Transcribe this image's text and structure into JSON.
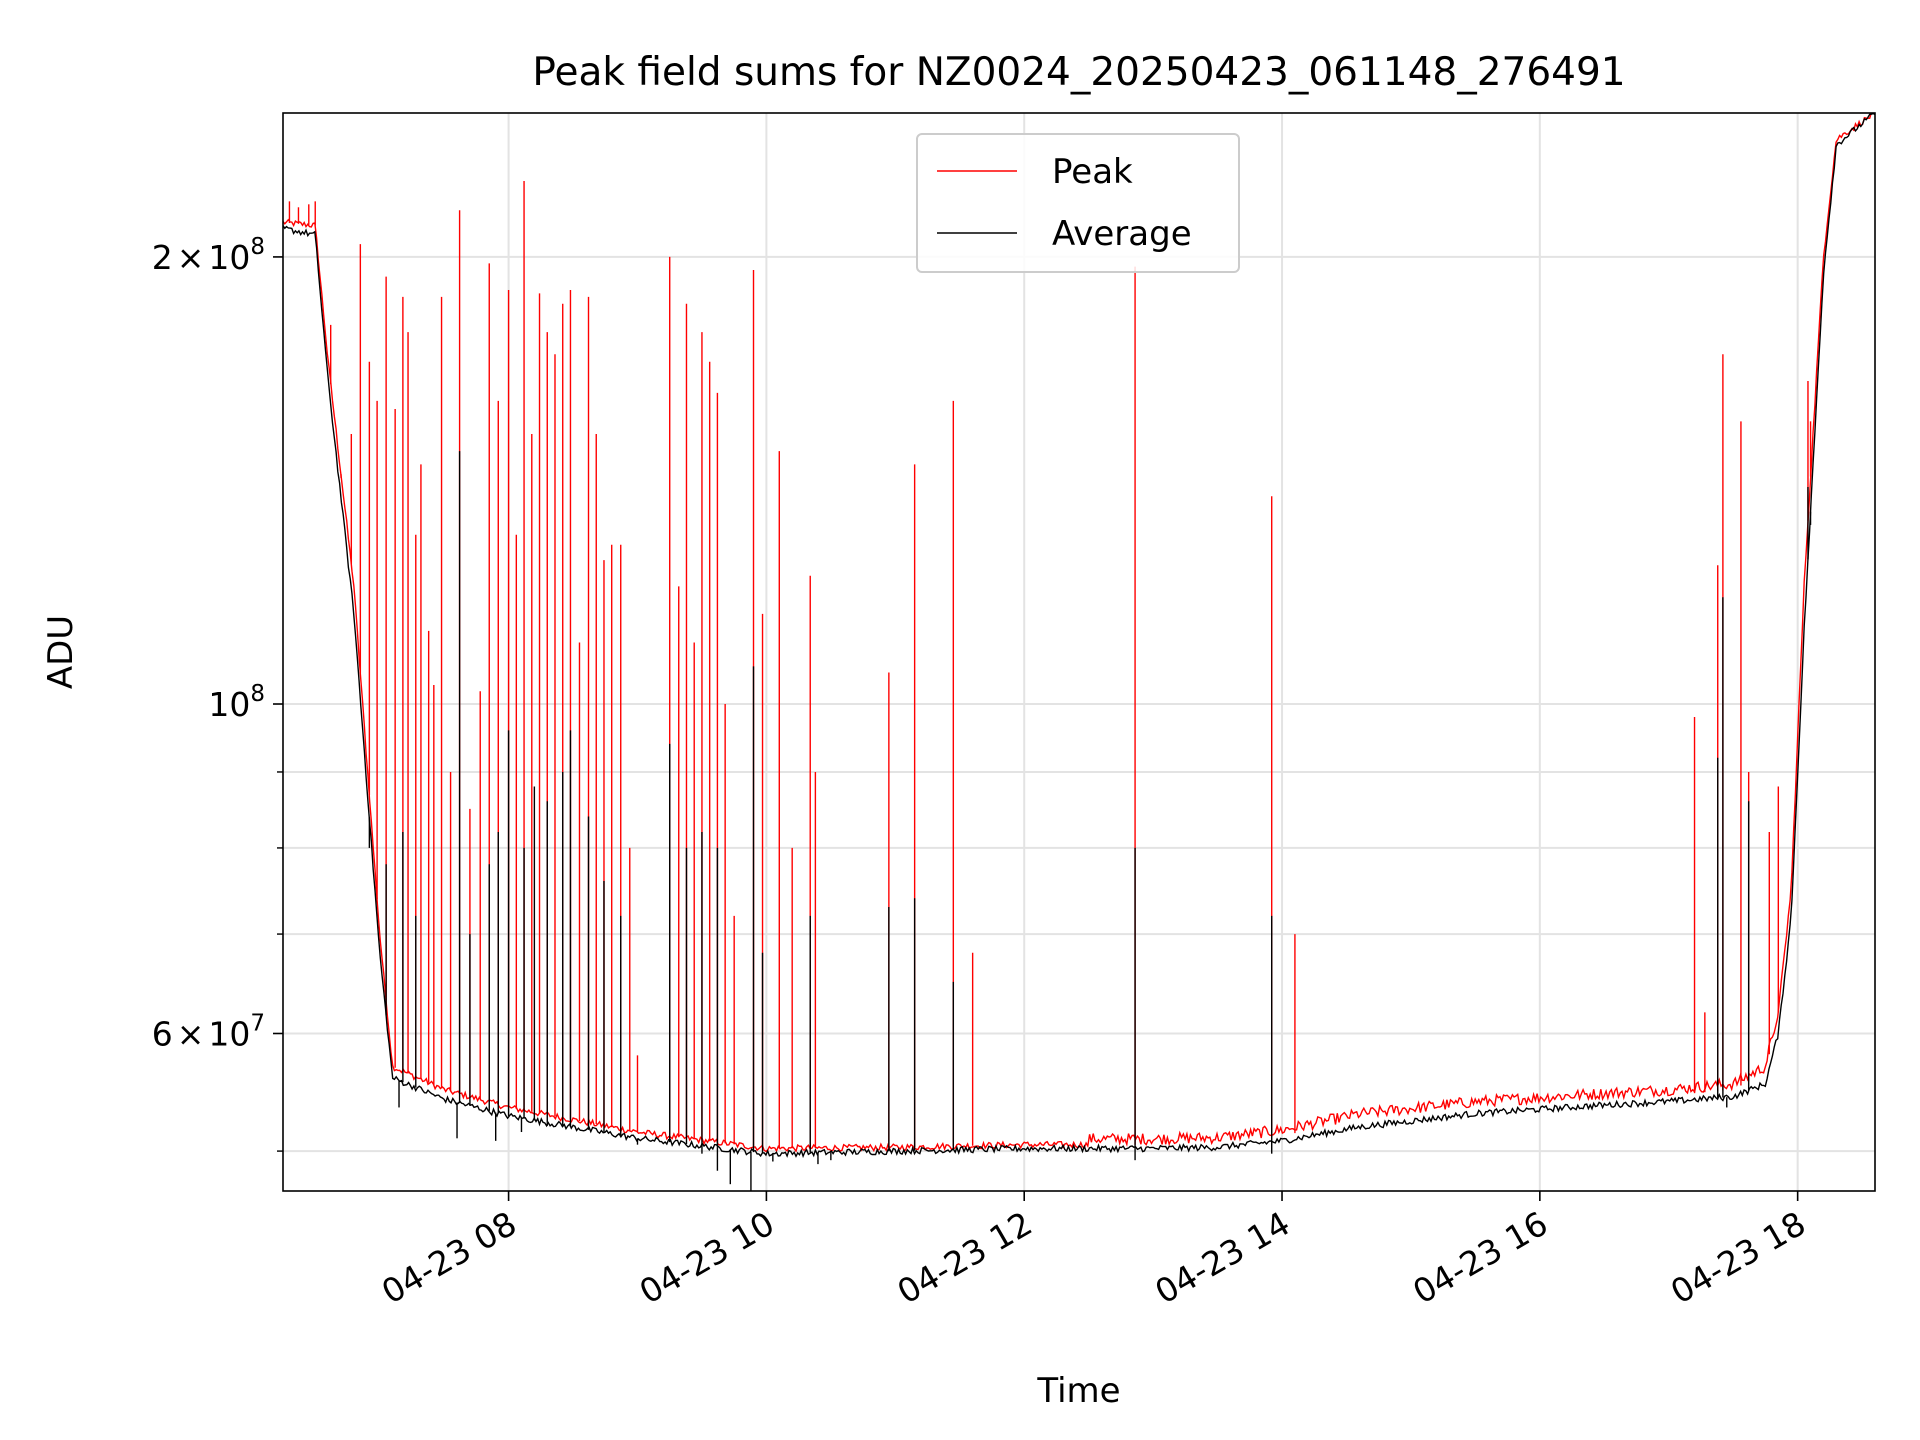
{
  "chart_data": {
    "type": "line",
    "title": "Peak field sums for NZ0024_20250423_061148_276491",
    "xlabel": "Time",
    "ylabel": "ADU",
    "yscale": "log",
    "ylim": [
      47000000,
      250000000
    ],
    "xlim_hours": [
      6.25,
      18.6
    ],
    "grid": true,
    "legend_position": "top-center",
    "x_ticks": [
      {
        "hour": 8,
        "label": "04-23 08"
      },
      {
        "hour": 10,
        "label": "04-23 10"
      },
      {
        "hour": 12,
        "label": "04-23 12"
      },
      {
        "hour": 14,
        "label": "04-23 14"
      },
      {
        "hour": 16,
        "label": "04-23 16"
      },
      {
        "hour": 18,
        "label": "04-23 18"
      }
    ],
    "y_major_ticks": [
      {
        "value": 60000000,
        "mantissa": "6",
        "times": "×",
        "base": "10",
        "exp": "7"
      },
      {
        "value": 100000000,
        "mantissa": "",
        "times": "",
        "base": "10",
        "exp": "8"
      },
      {
        "value": 200000000,
        "mantissa": "2",
        "times": "×",
        "base": "10",
        "exp": "8"
      }
    ],
    "y_minor_grid": [
      50000000,
      70000000,
      80000000,
      90000000
    ],
    "series": [
      {
        "name": "Peak",
        "color": "#ff0000",
        "baseline": [
          [
            6.25,
            211000000
          ],
          [
            6.5,
            210000000
          ],
          [
            6.6,
            170000000
          ],
          [
            6.8,
            120000000
          ],
          [
            7.0,
            70000000
          ],
          [
            7.1,
            57000000
          ],
          [
            7.5,
            55000000
          ],
          [
            8.0,
            53500000
          ],
          [
            9.0,
            51500000
          ],
          [
            10.0,
            50200000
          ],
          [
            11.0,
            50300000
          ],
          [
            12.0,
            50500000
          ],
          [
            13.0,
            50500000
          ],
          [
            13.5,
            50600000
          ],
          [
            14.0,
            51200000
          ],
          [
            14.6,
            52500000
          ],
          [
            15.5,
            53500000
          ],
          [
            16.5,
            54200000
          ],
          [
            17.0,
            54500000
          ],
          [
            17.5,
            55000000
          ],
          [
            17.75,
            56500000
          ],
          [
            17.85,
            62000000
          ],
          [
            17.95,
            75000000
          ],
          [
            18.05,
            120000000
          ],
          [
            18.2,
            200000000
          ],
          [
            18.3,
            240000000
          ],
          [
            18.6,
            250000000
          ]
        ],
        "spikes": [
          [
            6.3,
            218000000
          ],
          [
            6.37,
            216000000
          ],
          [
            6.45,
            217000000
          ],
          [
            6.5,
            218000000
          ],
          [
            6.62,
            180000000
          ],
          [
            6.7,
            142000000
          ],
          [
            6.78,
            152000000
          ],
          [
            6.85,
            204000000
          ],
          [
            6.92,
            170000000
          ],
          [
            6.98,
            160000000
          ],
          [
            7.05,
            194000000
          ],
          [
            7.12,
            158000000
          ],
          [
            7.18,
            188000000
          ],
          [
            7.22,
            178000000
          ],
          [
            7.28,
            130000000
          ],
          [
            7.32,
            145000000
          ],
          [
            7.38,
            112000000
          ],
          [
            7.42,
            103000000
          ],
          [
            7.48,
            188000000
          ],
          [
            7.55,
            90000000
          ],
          [
            7.62,
            215000000
          ],
          [
            7.7,
            85000000
          ],
          [
            7.78,
            102000000
          ],
          [
            7.85,
            198000000
          ],
          [
            7.92,
            160000000
          ],
          [
            8.0,
            190000000
          ],
          [
            8.06,
            130000000
          ],
          [
            8.12,
            225000000
          ],
          [
            8.18,
            152000000
          ],
          [
            8.24,
            189000000
          ],
          [
            8.3,
            178000000
          ],
          [
            8.36,
            172000000
          ],
          [
            8.42,
            186000000
          ],
          [
            8.48,
            190000000
          ],
          [
            8.55,
            110000000
          ],
          [
            8.62,
            188000000
          ],
          [
            8.68,
            152000000
          ],
          [
            8.74,
            125000000
          ],
          [
            8.8,
            128000000
          ],
          [
            8.87,
            128000000
          ],
          [
            8.94,
            80000000
          ],
          [
            9.0,
            58000000
          ],
          [
            9.25,
            200000000
          ],
          [
            9.32,
            120000000
          ],
          [
            9.38,
            186000000
          ],
          [
            9.44,
            110000000
          ],
          [
            9.5,
            178000000
          ],
          [
            9.56,
            170000000
          ],
          [
            9.62,
            162000000
          ],
          [
            9.68,
            100000000
          ],
          [
            9.75,
            72000000
          ],
          [
            9.9,
            196000000
          ],
          [
            9.97,
            115000000
          ],
          [
            10.1,
            148000000
          ],
          [
            10.2,
            80000000
          ],
          [
            10.34,
            122000000
          ],
          [
            10.38,
            90000000
          ],
          [
            10.95,
            105000000
          ],
          [
            11.15,
            145000000
          ],
          [
            11.45,
            160000000
          ],
          [
            11.6,
            68000000
          ],
          [
            12.86,
            197000000
          ],
          [
            13.92,
            138000000
          ],
          [
            14.1,
            70000000
          ],
          [
            17.2,
            98000000
          ],
          [
            17.28,
            62000000
          ],
          [
            17.38,
            124000000
          ],
          [
            17.42,
            172000000
          ],
          [
            17.56,
            155000000
          ],
          [
            17.62,
            90000000
          ],
          [
            17.78,
            82000000
          ],
          [
            17.85,
            88000000
          ],
          [
            18.08,
            165000000
          ],
          [
            18.1,
            155000000
          ]
        ]
      },
      {
        "name": "Average",
        "color": "#000000",
        "baseline": [
          [
            6.25,
            209000000
          ],
          [
            6.5,
            207000000
          ],
          [
            6.6,
            165000000
          ],
          [
            6.8,
            115000000
          ],
          [
            7.0,
            68000000
          ],
          [
            7.1,
            56000000
          ],
          [
            7.5,
            54200000
          ],
          [
            8.0,
            52800000
          ],
          [
            9.0,
            51000000
          ],
          [
            10.0,
            49800000
          ],
          [
            11.0,
            50000000
          ],
          [
            12.0,
            50200000
          ],
          [
            13.0,
            50200000
          ],
          [
            13.5,
            50300000
          ],
          [
            14.0,
            50800000
          ],
          [
            14.6,
            51900000
          ],
          [
            15.5,
            53000000
          ],
          [
            16.5,
            53700000
          ],
          [
            17.0,
            54000000
          ],
          [
            17.5,
            54400000
          ],
          [
            17.75,
            55500000
          ],
          [
            17.85,
            60000000
          ],
          [
            17.95,
            72000000
          ],
          [
            18.05,
            112000000
          ],
          [
            18.2,
            195000000
          ],
          [
            18.3,
            238000000
          ],
          [
            18.6,
            250000000
          ]
        ],
        "spikes": [
          [
            6.92,
            80000000
          ],
          [
            7.05,
            78000000
          ],
          [
            7.18,
            82000000
          ],
          [
            7.28,
            72000000
          ],
          [
            7.62,
            148000000
          ],
          [
            7.7,
            70000000
          ],
          [
            7.85,
            78000000
          ],
          [
            7.92,
            82000000
          ],
          [
            8.0,
            96000000
          ],
          [
            8.12,
            80000000
          ],
          [
            8.2,
            88000000
          ],
          [
            8.3,
            86000000
          ],
          [
            8.42,
            90000000
          ],
          [
            8.48,
            96000000
          ],
          [
            8.62,
            84000000
          ],
          [
            8.74,
            76000000
          ],
          [
            8.87,
            72000000
          ],
          [
            9.25,
            94000000
          ],
          [
            9.38,
            80000000
          ],
          [
            9.5,
            82000000
          ],
          [
            9.62,
            80000000
          ],
          [
            9.9,
            106000000
          ],
          [
            9.97,
            68000000
          ],
          [
            10.34,
            72000000
          ],
          [
            10.95,
            73000000
          ],
          [
            11.15,
            74000000
          ],
          [
            11.45,
            65000000
          ],
          [
            12.86,
            80000000
          ],
          [
            13.92,
            72000000
          ],
          [
            17.38,
            92000000
          ],
          [
            17.42,
            118000000
          ],
          [
            17.62,
            86000000
          ],
          [
            18.08,
            140000000
          ],
          [
            18.1,
            132000000
          ]
        ],
        "dips": [
          [
            7.15,
            53500000
          ],
          [
            7.6,
            51000000
          ],
          [
            7.9,
            50800000
          ],
          [
            8.1,
            51500000
          ],
          [
            8.3,
            52000000
          ],
          [
            9.0,
            50500000
          ],
          [
            9.5,
            49800000
          ],
          [
            9.62,
            48500000
          ],
          [
            9.72,
            47500000
          ],
          [
            9.88,
            47000000
          ],
          [
            10.05,
            49200000
          ],
          [
            10.4,
            49000000
          ],
          [
            10.5,
            49300000
          ],
          [
            12.86,
            49300000
          ],
          [
            13.92,
            49800000
          ],
          [
            17.45,
            53500000
          ]
        ]
      }
    ]
  }
}
